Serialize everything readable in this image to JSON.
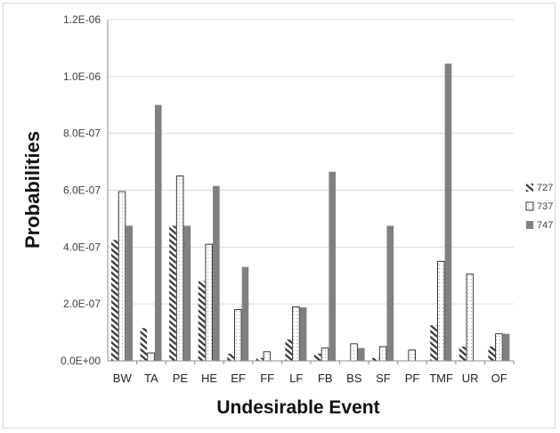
{
  "chart_data": {
    "type": "bar",
    "title": "",
    "xlabel": "Undesirable Event",
    "ylabel": "Probabilities",
    "categories": [
      "BW",
      "TA",
      "PE",
      "HE",
      "EF",
      "FF",
      "LF",
      "FB",
      "BS",
      "SF",
      "PF",
      "TMF",
      "UR",
      "OF"
    ],
    "yticks": [
      "0.0E+00",
      "2.0E-07",
      "4.0E-07",
      "6.0E-07",
      "8.0E-07",
      "1.0E-06",
      "1.2E-06"
    ],
    "ylim": [
      0,
      1.2e-06
    ],
    "grid": true,
    "legend_position": "right",
    "series": [
      {
        "name": "727",
        "pattern": "hatched",
        "color": "#333333",
        "values": [
          4.25e-07,
          1.15e-07,
          4.75e-07,
          2.8e-07,
          2.5e-08,
          1e-08,
          7.5e-08,
          2.5e-08,
          0,
          1e-08,
          0,
          1.25e-07,
          5e-08,
          5e-08
        ]
      },
      {
        "name": "737",
        "pattern": "dotted",
        "color": "#222222",
        "values": [
          5.95e-07,
          2.8e-08,
          6.5e-07,
          4.1e-07,
          1.8e-07,
          3.2e-08,
          1.9e-07,
          4.5e-08,
          6e-08,
          5e-08,
          3.8e-08,
          3.5e-07,
          3.05e-07,
          9.5e-08
        ]
      },
      {
        "name": "747",
        "pattern": "solid",
        "color": "#808080",
        "values": [
          4.75e-07,
          9e-07,
          4.75e-07,
          6.15e-07,
          3.3e-07,
          0,
          1.88e-07,
          6.65e-07,
          4.5e-08,
          4.75e-07,
          0,
          1.045e-06,
          0,
          9.5e-08
        ]
      }
    ]
  }
}
